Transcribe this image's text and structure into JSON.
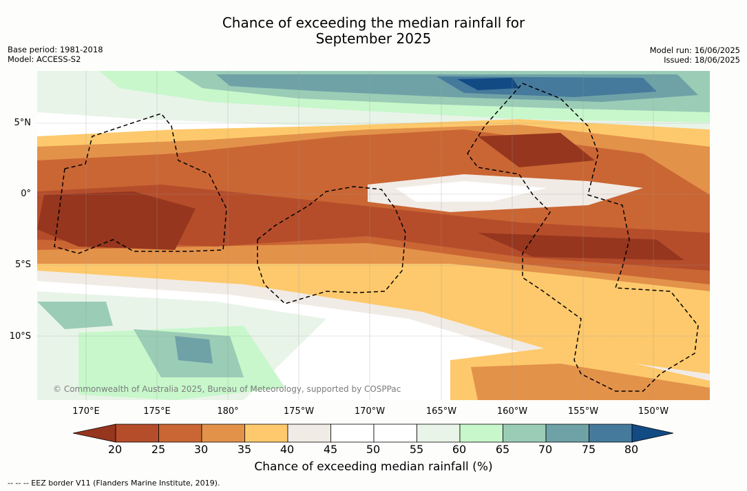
{
  "header": {
    "title_line1": "Chance of exceeding the median rainfall for",
    "title_line2": "September 2025",
    "base_period": "Base period: 1981-2018",
    "model": "Model: ACCESS-S2",
    "model_run": "Model run: 16/06/2025",
    "issued": "Issued: 18/06/2025"
  },
  "map": {
    "lat_ticks": [
      "5°N",
      "0°",
      "5°S",
      "10°S"
    ],
    "lon_ticks": [
      "170°E",
      "175°E",
      "180°",
      "175°W",
      "170°W",
      "165°W",
      "160°W",
      "155°W",
      "150°W"
    ],
    "copyright": "© Commonwealth of Australia 2025, Bureau of Meteorology, supported by COSPPac",
    "gridlines": true
  },
  "colorbar": {
    "title": "Chance of exceeding median rainfall (%)",
    "labels": [
      "20",
      "25",
      "30",
      "35",
      "40",
      "45",
      "50",
      "55",
      "60",
      "65",
      "70",
      "75",
      "80"
    ],
    "colors": [
      "#96361e",
      "#b54d2b",
      "#ca6634",
      "#e3924a",
      "#fdc96c",
      "#f1ebe6",
      "#ffffff",
      "#ffffff",
      "#e9f4e9",
      "#c7f7cb",
      "#9bccb6",
      "#6fa2a7",
      "#457a9c",
      "#124a84"
    ]
  },
  "legend": {
    "eez_note": "--  --  -- EEZ border V11 (Flanders Marine Institute, 2019)."
  }
}
